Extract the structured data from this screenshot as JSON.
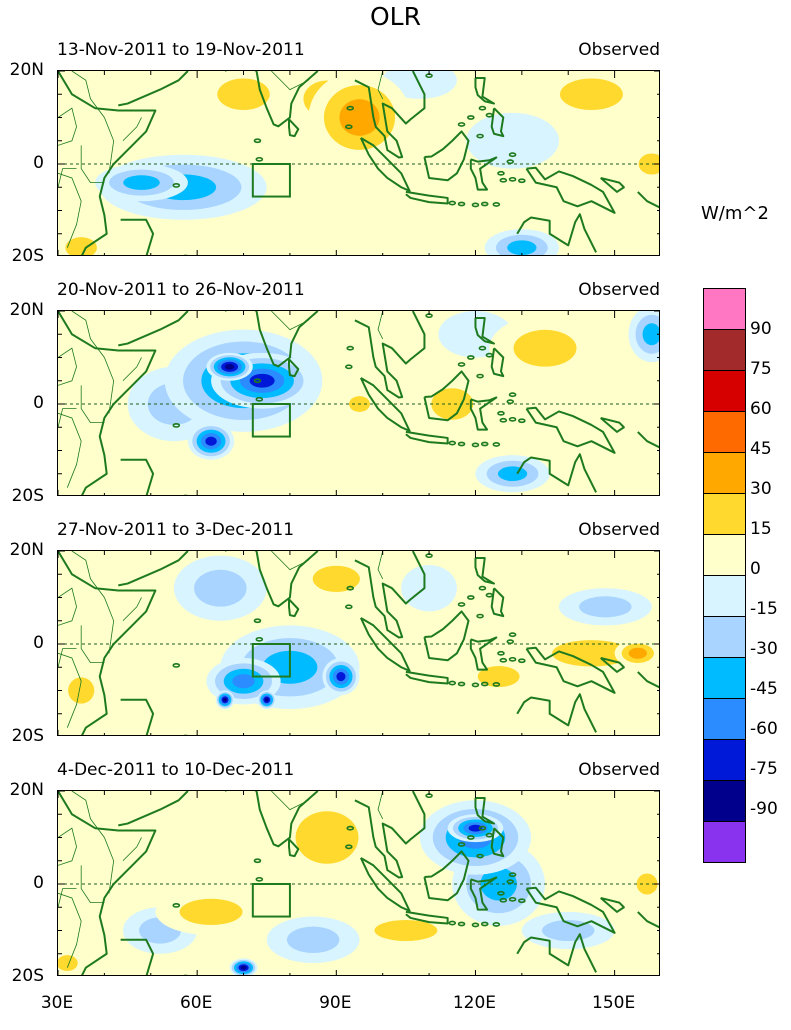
{
  "title": "OLR",
  "units": "W/m^2",
  "panels": [
    {
      "dates": "13-Nov-2011 to 19-Nov-2011",
      "label": "Observed",
      "blobs": [
        {
          "lon": 95,
          "lat": 10,
          "rx": 11,
          "ry": 10,
          "val": 35
        },
        {
          "lon": 88,
          "lat": 14,
          "rx": 9,
          "ry": 7,
          "val": 20
        },
        {
          "lon": 70,
          "lat": 15,
          "rx": 10,
          "ry": 6,
          "val": 25
        },
        {
          "lon": 57,
          "lat": -5,
          "rx": 18,
          "ry": 7,
          "val": -35
        },
        {
          "lon": 48,
          "lat": -4,
          "rx": 10,
          "ry": 4,
          "val": -45
        },
        {
          "lon": 40,
          "lat": 10,
          "rx": 6,
          "ry": 8,
          "val": 8
        },
        {
          "lon": 145,
          "lat": 15,
          "rx": 12,
          "ry": 6,
          "val": 22
        },
        {
          "lon": 128,
          "lat": 5,
          "rx": 10,
          "ry": 6,
          "val": -15
        },
        {
          "lon": 130,
          "lat": -18,
          "rx": 8,
          "ry": 4,
          "val": -40
        },
        {
          "lon": 108,
          "lat": 18,
          "rx": 8,
          "ry": 4,
          "val": -12
        },
        {
          "lon": 158,
          "lat": 0,
          "rx": 5,
          "ry": 4,
          "val": 30
        },
        {
          "lon": 35,
          "lat": -18,
          "rx": 6,
          "ry": 4,
          "val": 20
        }
      ]
    },
    {
      "dates": "20-Nov-2011 to 26-Nov-2011",
      "label": "Observed",
      "blobs": [
        {
          "lon": 70,
          "lat": 5,
          "rx": 17,
          "ry": 11,
          "val": -50
        },
        {
          "lon": 74,
          "lat": 5,
          "rx": 11,
          "ry": 6,
          "val": -70
        },
        {
          "lon": 67,
          "lat": 8,
          "rx": 5,
          "ry": 3,
          "val": -85
        },
        {
          "lon": 63,
          "lat": -8,
          "rx": 5,
          "ry": 4,
          "val": -70
        },
        {
          "lon": 55,
          "lat": 0,
          "rx": 10,
          "ry": 8,
          "val": -20
        },
        {
          "lon": 95,
          "lat": 0,
          "rx": 4,
          "ry": 3,
          "val": 22
        },
        {
          "lon": 115,
          "lat": 0,
          "rx": 8,
          "ry": 6,
          "val": 20
        },
        {
          "lon": 135,
          "lat": 12,
          "rx": 12,
          "ry": 7,
          "val": 20
        },
        {
          "lon": 120,
          "lat": 15,
          "rx": 8,
          "ry": 5,
          "val": -15
        },
        {
          "lon": 158,
          "lat": 15,
          "rx": 5,
          "ry": 6,
          "val": -40
        },
        {
          "lon": 128,
          "lat": -15,
          "rx": 8,
          "ry": 4,
          "val": -35
        },
        {
          "lon": 35,
          "lat": -10,
          "rx": 5,
          "ry": 6,
          "val": 15
        }
      ]
    },
    {
      "dates": "27-Nov-2011 to 3-Dec-2011",
      "label": "Observed",
      "blobs": [
        {
          "lon": 80,
          "lat": -5,
          "rx": 15,
          "ry": 9,
          "val": -40
        },
        {
          "lon": 70,
          "lat": -8,
          "rx": 8,
          "ry": 5,
          "val": -55
        },
        {
          "lon": 91,
          "lat": -7,
          "rx": 4,
          "ry": 4,
          "val": -75
        },
        {
          "lon": 66,
          "lat": -12,
          "rx": 2,
          "ry": 2,
          "val": -85
        },
        {
          "lon": 75,
          "lat": -12,
          "rx": 2,
          "ry": 2,
          "val": -85
        },
        {
          "lon": 65,
          "lat": 12,
          "rx": 10,
          "ry": 7,
          "val": -30
        },
        {
          "lon": 90,
          "lat": 14,
          "rx": 9,
          "ry": 5,
          "val": 20
        },
        {
          "lon": 145,
          "lat": -2,
          "rx": 15,
          "ry": 5,
          "val": 25
        },
        {
          "lon": 155,
          "lat": -2,
          "rx": 5,
          "ry": 3,
          "val": 40
        },
        {
          "lon": 125,
          "lat": -7,
          "rx": 8,
          "ry": 4,
          "val": 25
        },
        {
          "lon": 148,
          "lat": 8,
          "rx": 10,
          "ry": 4,
          "val": -30
        },
        {
          "lon": 110,
          "lat": 12,
          "rx": 6,
          "ry": 5,
          "val": -15
        },
        {
          "lon": 35,
          "lat": -10,
          "rx": 5,
          "ry": 5,
          "val": 25
        }
      ]
    },
    {
      "dates": "4-Dec-2011 to 10-Dec-2011",
      "label": "Observed",
      "blobs": [
        {
          "lon": 120,
          "lat": 10,
          "rx": 12,
          "ry": 8,
          "val": -50
        },
        {
          "lon": 120,
          "lat": 12,
          "rx": 6,
          "ry": 3,
          "val": -75
        },
        {
          "lon": 125,
          "lat": 0,
          "rx": 10,
          "ry": 9,
          "val": -35
        },
        {
          "lon": 88,
          "lat": 10,
          "rx": 12,
          "ry": 10,
          "val": 25
        },
        {
          "lon": 63,
          "lat": -6,
          "rx": 12,
          "ry": 5,
          "val": 30
        },
        {
          "lon": 85,
          "lat": -12,
          "rx": 10,
          "ry": 5,
          "val": -30
        },
        {
          "lon": 70,
          "lat": -18,
          "rx": 3,
          "ry": 2,
          "val": -80
        },
        {
          "lon": 52,
          "lat": -10,
          "rx": 8,
          "ry": 5,
          "val": -20
        },
        {
          "lon": 105,
          "lat": -10,
          "rx": 12,
          "ry": 4,
          "val": 20
        },
        {
          "lon": 140,
          "lat": -10,
          "rx": 10,
          "ry": 4,
          "val": -25
        },
        {
          "lon": 157,
          "lat": 0,
          "rx": 4,
          "ry": 4,
          "val": 20
        },
        {
          "lon": 32,
          "lat": -17,
          "rx": 4,
          "ry": 3,
          "val": 30
        }
      ]
    }
  ],
  "lat_labels": [
    "20N",
    "0",
    "20S"
  ],
  "lon_labels": [
    "30E",
    "60E",
    "90E",
    "120E",
    "150E"
  ],
  "lon_values": [
    30,
    60,
    90,
    120,
    150
  ],
  "colorbar": {
    "labels": [
      "90",
      "75",
      "60",
      "45",
      "30",
      "15",
      "0",
      "-15",
      "-30",
      "-45",
      "-60",
      "-75",
      "-90"
    ],
    "colors": [
      "#ff77c3",
      "#a22a2a",
      "#d60000",
      "#ff6a00",
      "#ffa800",
      "#ffd92e",
      "#ffffcc",
      "#d8f4ff",
      "#a8d4ff",
      "#00bbff",
      "#2b8cff",
      "#0018d8",
      "#00008c",
      "#8a33ee"
    ],
    "levels": [
      90,
      75,
      60,
      45,
      30,
      15,
      0,
      -15,
      -30,
      -45,
      -60,
      -75,
      -90
    ]
  },
  "domain": {
    "lon_min": 30,
    "lon_max": 160,
    "lat_min": -20,
    "lat_max": 20
  },
  "box": {
    "lon_min": 72,
    "lon_max": 80,
    "lat_min": -7,
    "lat_max": 0
  },
  "coast_color": "#1e7a1e"
}
